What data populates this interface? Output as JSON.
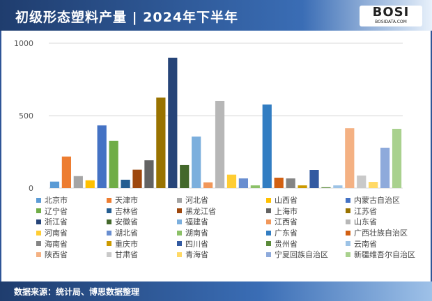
{
  "title": "初级形态塑料产量 | 2024年下半年",
  "logo": {
    "text": "BOSI",
    "sub": "BOSIDATA.COM"
  },
  "source": "数据来源：统计局、博思数据整理",
  "chart_data": {
    "type": "bar",
    "title": "",
    "xlabel": "",
    "ylabel": "",
    "ylim": [
      0,
      1000
    ],
    "yticks": [
      "0",
      "500",
      "1000"
    ],
    "grid": true,
    "legend": "bottom",
    "categories": [
      "北京市",
      "天津市",
      "河北省",
      "山西省",
      "内蒙古自治区",
      "辽宁省",
      "吉林省",
      "黑龙江省",
      "上海市",
      "江苏省",
      "浙江省",
      "安徽省",
      "福建省",
      "江西省",
      "山东省",
      "河南省",
      "湖北省",
      "湖南省",
      "广东省",
      "广西壮族自治区",
      "海南省",
      "重庆市",
      "四川省",
      "贵州省",
      "云南省",
      "陕西省",
      "甘肃省",
      "青海省",
      "宁夏回族自治区",
      "新疆维吾尔自治区"
    ],
    "values": [
      45,
      218,
      83,
      54,
      433,
      327,
      58,
      127,
      192,
      625,
      900,
      159,
      356,
      40,
      601,
      93,
      67,
      19,
      577,
      72,
      67,
      19,
      125,
      6,
      19,
      413,
      87,
      43,
      279,
      409
    ],
    "colors": [
      "#5b9bd5",
      "#ed7d31",
      "#a5a5a5",
      "#ffc000",
      "#4472c4",
      "#70ad47",
      "#255e91",
      "#9e480e",
      "#636363",
      "#997300",
      "#264478",
      "#43682b",
      "#7cafdd",
      "#f1975a",
      "#b7b7b7",
      "#ffcd33",
      "#698ed0",
      "#8cc168",
      "#327dc2",
      "#d26012",
      "#848484",
      "#cc9a00",
      "#335aa1",
      "#5a8a39",
      "#9dc3e6",
      "#f4b183",
      "#c9c9c9",
      "#ffd966",
      "#8eaadb",
      "#a9d18e"
    ]
  }
}
